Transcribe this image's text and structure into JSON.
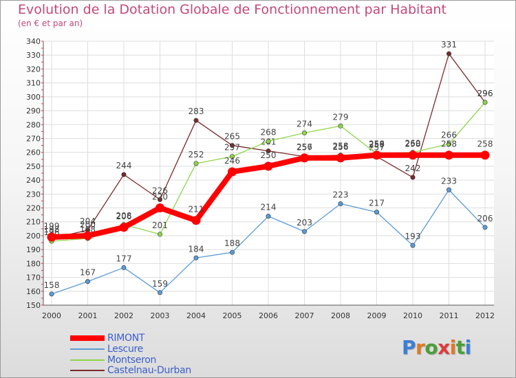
{
  "chart_data": {
    "type": "line",
    "title": "Evolution de la Dotation Globale de Fonctionnement par Habitant",
    "subtitle": "(en € et par an)",
    "xlabel": "",
    "ylabel": "",
    "ylim": [
      150,
      340
    ],
    "y_ticks": [
      150,
      160,
      170,
      180,
      190,
      200,
      210,
      220,
      230,
      240,
      250,
      260,
      270,
      280,
      290,
      300,
      310,
      320,
      330,
      340
    ],
    "categories": [
      "2000",
      "2001",
      "2002",
      "2003",
      "2004",
      "2005",
      "2006",
      "2007",
      "2008",
      "2009",
      "2010",
      "2011",
      "2012"
    ],
    "grid": true,
    "legend_position": "bottom-left",
    "series": [
      {
        "name": "Castelnau-Durban",
        "color": "#7a2a2a",
        "values": [
          198,
          204,
          244,
          226,
          283,
          265,
          261,
          257,
          258,
          257,
          242,
          331,
          296
        ]
      },
      {
        "name": "Montseron",
        "color": "#8ed64a",
        "values": [
          196,
          198,
          208,
          201,
          252,
          257,
          268,
          274,
          279,
          259,
          260,
          266,
          296
        ]
      },
      {
        "name": "Lescure",
        "color": "#5b9bd5",
        "values": [
          158,
          167,
          177,
          159,
          184,
          188,
          214,
          203,
          223,
          217,
          193,
          233,
          206
        ]
      },
      {
        "name": "RIMONT",
        "color": "#ff0000",
        "values": [
          199,
          200,
          206,
          220,
          211,
          246,
          250,
          256,
          256,
          258,
          258,
          258,
          258
        ]
      }
    ],
    "legend_order": [
      "RIMONT",
      "Lescure",
      "Montseron",
      "Castelnau-Durban"
    ]
  },
  "logo": {
    "text": "Proxiti",
    "letter_colors": [
      "#3a7fd5",
      "#e07a20",
      "#4a9e3a",
      "#e03a3a",
      "#e07a20",
      "#4a9e3a",
      "#3a7fd5"
    ]
  }
}
